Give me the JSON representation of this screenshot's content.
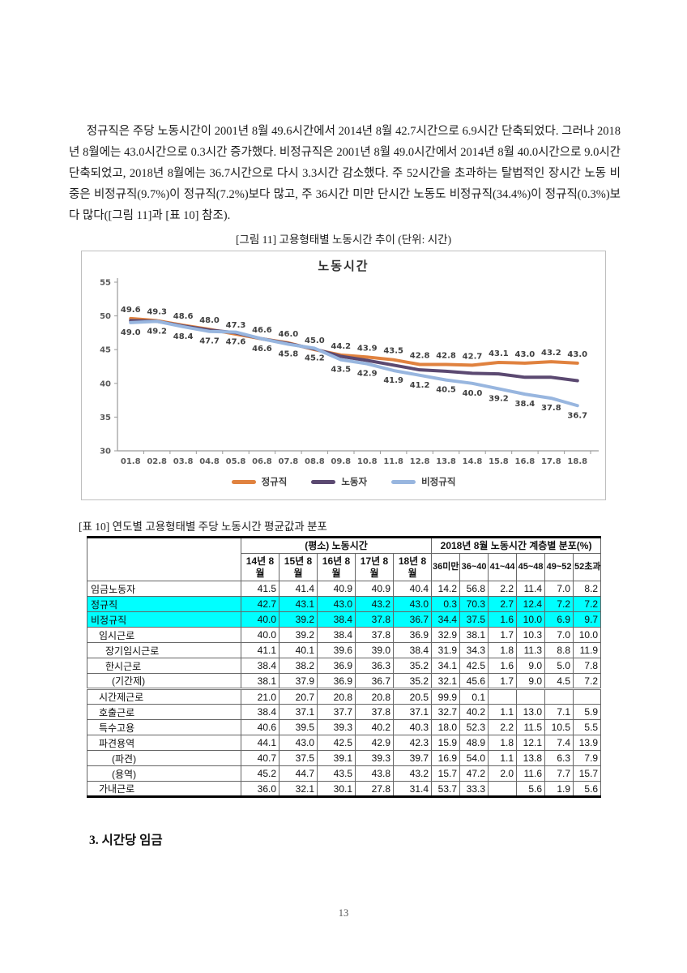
{
  "page": {
    "number": "13"
  },
  "paragraph": "정규직은 주당 노동시간이 2001년 8월 49.6시간에서 2014년 8월 42.7시간으로 6.9시간 단축되었다. 그러나 2018년 8월에는 43.0시간으로 0.3시간 증가했다. 비정규직은 2001년 8월 49.0시간에서 2014년 8월 40.0시간으로 9.0시간 단축되었고, 2018년 8월에는 36.7시간으로 다시 3.3시간 감소했다. 주 52시간을 초과하는 탈법적인 장시간 노동 비중은 비정규직(9.7%)이 정규직(7.2%)보다 많고, 주 36시간 미만 단시간 노동도 비정규직(34.4%)이 정규직(0.3%)보다 많다([그림 11]과 [표 10] 참조).",
  "figure": {
    "caption": "[그림 11] 고용형태별 노동시간 추이 (단위: 시간)"
  },
  "chart_data": {
    "type": "line",
    "title": "노동시간",
    "x": [
      "01.8",
      "02.8",
      "03.8",
      "04.8",
      "05.8",
      "06.8",
      "07.8",
      "08.8",
      "09.8",
      "10.8",
      "11.8",
      "12.8",
      "13.8",
      "14.8",
      "15.8",
      "16.8",
      "17.8",
      "18.8"
    ],
    "ylim": [
      30,
      55
    ],
    "yticks": [
      30,
      35,
      40,
      45,
      50,
      55
    ],
    "grid": false,
    "legend_position": "bottom",
    "series": [
      {
        "name": "정규직",
        "color": "#E0823F",
        "labels": true,
        "label_position": "above",
        "values": [
          49.6,
          49.3,
          48.6,
          48.0,
          47.3,
          46.6,
          46.0,
          45.0,
          44.2,
          43.9,
          43.5,
          42.8,
          42.8,
          42.7,
          43.1,
          43.0,
          43.2,
          43.0
        ]
      },
      {
        "name": "노동자",
        "color": "#5B4971",
        "labels": false,
        "label_position": "none",
        "values": [
          49.3,
          49.2,
          48.5,
          47.9,
          47.5,
          46.6,
          45.9,
          45.1,
          44.0,
          43.4,
          42.7,
          42.0,
          41.8,
          41.5,
          41.4,
          40.9,
          40.9,
          40.4
        ]
      },
      {
        "name": "비정규직",
        "color": "#98B6DF",
        "labels": true,
        "label_position": "below",
        "values": [
          49.0,
          49.2,
          48.4,
          47.7,
          47.6,
          46.6,
          45.8,
          45.2,
          43.5,
          42.9,
          41.9,
          41.2,
          40.5,
          40.0,
          39.2,
          38.4,
          37.8,
          36.7
        ]
      }
    ]
  },
  "table": {
    "caption": "[표 10] 연도별 고용형태별 주당 노동시간 평균값과 분포",
    "group_headers": [
      {
        "label": "(평소) 노동시간",
        "span": 5
      },
      {
        "label": "2018년 8월 노동시간 계층별 분포(%)",
        "span": 6
      }
    ],
    "col_headers": [
      "14년 8월",
      "15년 8월",
      "16년 8월",
      "17년 8월",
      "18년 8월",
      "36미만",
      "36~40",
      "41~44",
      "45~48",
      "49~52",
      "52초과"
    ],
    "rows": [
      {
        "label": "임금노동자",
        "indent": 0,
        "highlight": false,
        "sep": false,
        "values": [
          "41.5",
          "41.4",
          "40.9",
          "40.9",
          "40.4",
          "14.2",
          "56.8",
          "2.2",
          "11.4",
          "7.0",
          "8.2"
        ]
      },
      {
        "label": "정규직",
        "indent": 0,
        "highlight": true,
        "sep": false,
        "values": [
          "42.7",
          "43.1",
          "43.0",
          "43.2",
          "43.0",
          "0.3",
          "70.3",
          "2.7",
          "12.4",
          "7.2",
          "7.2"
        ]
      },
      {
        "label": "비정규직",
        "indent": 0,
        "highlight": true,
        "sep": false,
        "values": [
          "40.0",
          "39.2",
          "38.4",
          "37.8",
          "36.7",
          "34.4",
          "37.5",
          "1.6",
          "10.0",
          "6.9",
          "9.7"
        ]
      },
      {
        "label": "임시근로",
        "indent": 1,
        "highlight": false,
        "sep": false,
        "values": [
          "40.0",
          "39.2",
          "38.4",
          "37.8",
          "36.9",
          "32.9",
          "38.1",
          "1.7",
          "10.3",
          "7.0",
          "10.0"
        ]
      },
      {
        "label": "장기임시근로",
        "indent": 2,
        "highlight": false,
        "sep": false,
        "values": [
          "41.1",
          "40.1",
          "39.6",
          "39.0",
          "38.4",
          "31.9",
          "34.3",
          "1.8",
          "11.3",
          "8.8",
          "11.9"
        ]
      },
      {
        "label": "한시근로",
        "indent": 2,
        "highlight": false,
        "sep": false,
        "values": [
          "38.4",
          "38.2",
          "36.9",
          "36.3",
          "35.2",
          "34.1",
          "42.5",
          "1.6",
          "9.0",
          "5.0",
          "7.8"
        ]
      },
      {
        "label": "(기간제)",
        "indent": 3,
        "highlight": false,
        "sep": false,
        "values": [
          "38.1",
          "37.9",
          "36.9",
          "36.7",
          "35.2",
          "32.1",
          "45.6",
          "1.7",
          "9.0",
          "4.5",
          "7.2"
        ]
      },
      {
        "label": "시간제근로",
        "indent": 1,
        "highlight": false,
        "sep": true,
        "values": [
          "21.0",
          "20.7",
          "20.8",
          "20.8",
          "20.5",
          "99.9",
          "0.1",
          "",
          "",
          "",
          ""
        ]
      },
      {
        "label": "호출근로",
        "indent": 1,
        "highlight": false,
        "sep": false,
        "values": [
          "38.4",
          "37.1",
          "37.7",
          "37.8",
          "37.1",
          "32.7",
          "40.2",
          "1.1",
          "13.0",
          "7.1",
          "5.9"
        ]
      },
      {
        "label": "특수고용",
        "indent": 1,
        "highlight": false,
        "sep": false,
        "values": [
          "40.6",
          "39.5",
          "39.3",
          "40.2",
          "40.3",
          "18.0",
          "52.3",
          "2.2",
          "11.5",
          "10.5",
          "5.5"
        ]
      },
      {
        "label": "파견용역",
        "indent": 1,
        "highlight": false,
        "sep": false,
        "values": [
          "44.1",
          "43.0",
          "42.5",
          "42.9",
          "42.3",
          "15.9",
          "48.9",
          "1.8",
          "12.1",
          "7.4",
          "13.9"
        ]
      },
      {
        "label": "(파견)",
        "indent": 3,
        "highlight": false,
        "sep": false,
        "values": [
          "40.7",
          "37.5",
          "39.1",
          "39.3",
          "39.7",
          "16.9",
          "54.0",
          "1.1",
          "13.8",
          "6.3",
          "7.9"
        ]
      },
      {
        "label": "(용역)",
        "indent": 3,
        "highlight": false,
        "sep": false,
        "values": [
          "45.2",
          "44.7",
          "43.5",
          "43.8",
          "43.2",
          "15.7",
          "47.2",
          "2.0",
          "11.6",
          "7.7",
          "15.7"
        ]
      },
      {
        "label": "가내근로",
        "indent": 1,
        "highlight": false,
        "sep": false,
        "values": [
          "36.0",
          "32.1",
          "30.1",
          "27.8",
          "31.4",
          "53.7",
          "33.3",
          "",
          "5.6",
          "1.9",
          "5.6"
        ]
      }
    ]
  },
  "section_heading": "3. 시간당 임금",
  "colors": {
    "highlight_row": "#00FFFF",
    "series_regular": "#E0823F",
    "series_all_workers": "#5B4971",
    "series_irregular": "#98B6DF",
    "chart_border": "#BFBFBF"
  }
}
